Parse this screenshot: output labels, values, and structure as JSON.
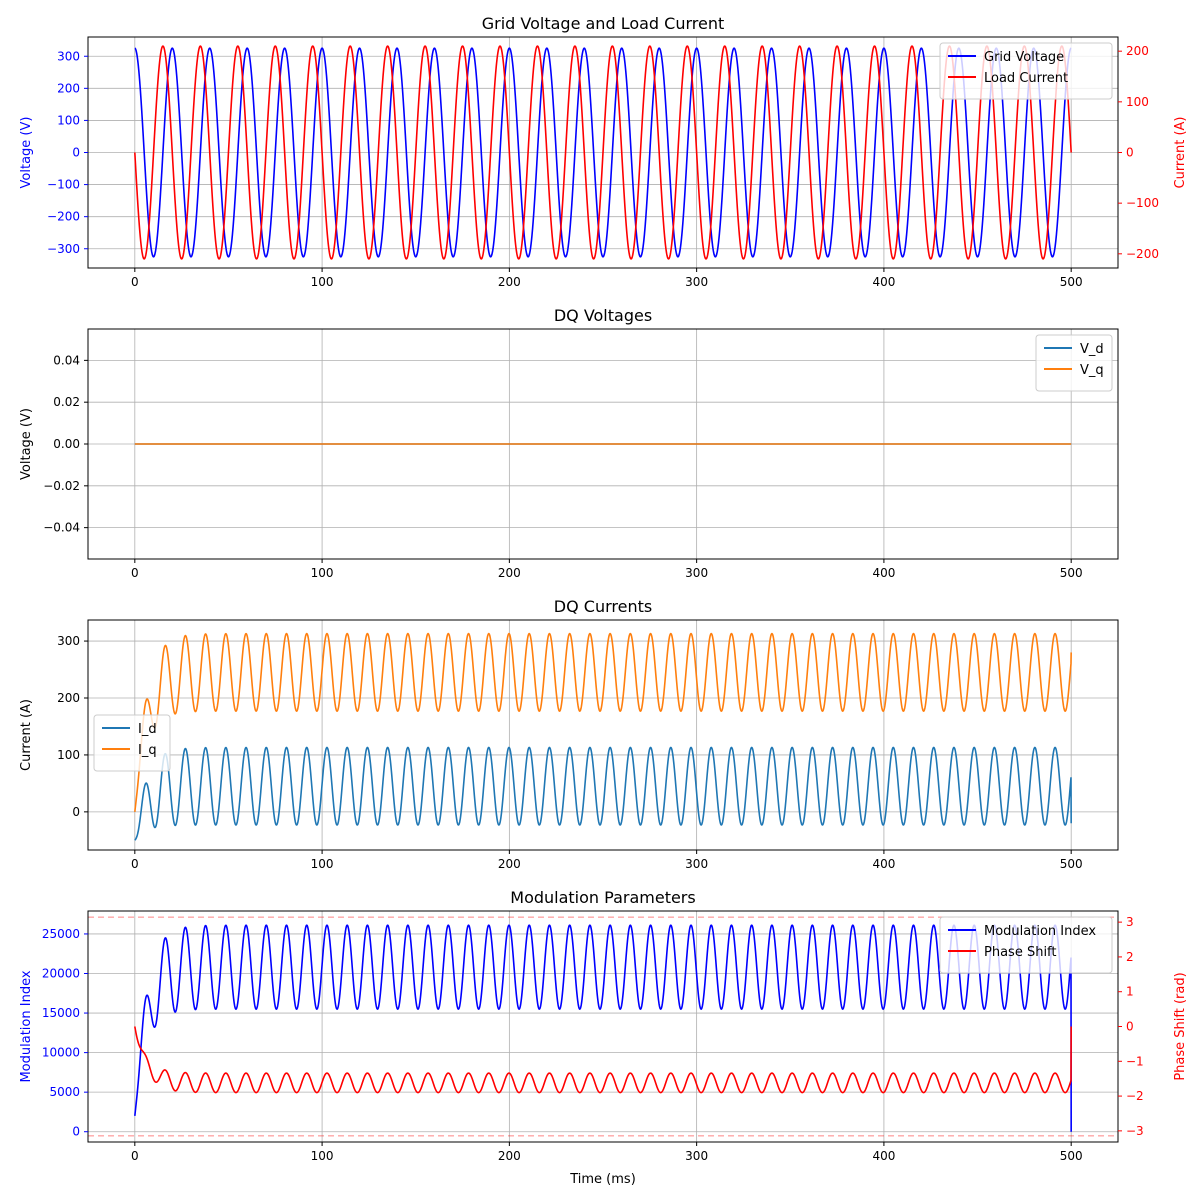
{
  "chart_data": [
    {
      "type": "line",
      "title": "Grid Voltage and Load Current",
      "xlabel": "",
      "ylabel": "Voltage (V)",
      "ylabel_right": "Current (A)",
      "xlim": [
        -25,
        525
      ],
      "ylim": [
        -360,
        360
      ],
      "ylim_right": [
        -228,
        228
      ],
      "xticks": [
        0,
        100,
        200,
        300,
        400,
        500
      ],
      "yticks": [
        -300,
        -200,
        -100,
        0,
        100,
        200,
        300
      ],
      "yticks_right": [
        -200,
        -100,
        0,
        100,
        200
      ],
      "grid": true,
      "legend": "top-right",
      "axis_color_left": "#0000ff",
      "axis_color_right": "#ff0000",
      "series": [
        {
          "name": "Grid Voltage",
          "axis": "left",
          "color": "#0000ff",
          "kind": "sine",
          "amplitude": 325,
          "period_ms": 20,
          "phase_cycles": 0.25,
          "x_range": [
            0,
            500
          ]
        },
        {
          "name": "Load Current",
          "axis": "right",
          "color": "#ff0000",
          "kind": "sine",
          "amplitude": 210,
          "period_ms": 20,
          "phase_cycles": 0.5,
          "x_range": [
            0,
            500
          ]
        }
      ]
    },
    {
      "type": "line",
      "title": "DQ Voltages",
      "xlabel": "",
      "ylabel": "Voltage (V)",
      "xlim": [
        -25,
        525
      ],
      "ylim": [
        -0.055,
        0.055
      ],
      "xticks": [
        0,
        100,
        200,
        300,
        400,
        500
      ],
      "yticks": [
        -0.04,
        -0.02,
        0.0,
        0.02,
        0.04
      ],
      "ytick_labels": [
        "−0.04",
        "−0.02",
        "0.00",
        "0.02",
        "0.04"
      ],
      "grid": true,
      "legend": "top-right",
      "series": [
        {
          "name": "V_d",
          "color": "#1f77b4",
          "kind": "constant",
          "value": 0,
          "x_range": [
            0,
            500
          ]
        },
        {
          "name": "V_q",
          "color": "#ff7f0e",
          "kind": "constant",
          "value": 0,
          "x_range": [
            0,
            500
          ]
        }
      ]
    },
    {
      "type": "line",
      "title": "DQ Currents",
      "xlabel": "",
      "ylabel": "Current (A)",
      "xlim": [
        -25,
        525
      ],
      "ylim": [
        -67,
        337
      ],
      "xticks": [
        0,
        100,
        200,
        300,
        400,
        500
      ],
      "yticks": [
        0,
        100,
        200,
        300
      ],
      "grid": true,
      "legend": "center-left",
      "series": [
        {
          "name": "I_d",
          "color": "#1f77b4",
          "kind": "oscillation",
          "start": -50,
          "mean": 45,
          "amplitude": 68,
          "period_ms": 10.8,
          "end": -20,
          "x_range": [
            0,
            500
          ]
        },
        {
          "name": "I_q",
          "color": "#ff7f0e",
          "kind": "oscillation",
          "start": 0,
          "mean": 245,
          "amplitude": 68,
          "period_ms": 10.8,
          "end": 280,
          "x_range": [
            0,
            500
          ]
        }
      ]
    },
    {
      "type": "line",
      "title": "Modulation Parameters",
      "xlabel": "Time (ms)",
      "ylabel": "Modulation Index",
      "ylabel_right": "Phase Shift (rad)",
      "xlim": [
        -25,
        525
      ],
      "ylim": [
        -1300,
        27900
      ],
      "ylim_right": [
        -3.32,
        3.32
      ],
      "xticks": [
        0,
        100,
        200,
        300,
        400,
        500
      ],
      "yticks": [
        0,
        5000,
        10000,
        15000,
        20000,
        25000
      ],
      "yticks_right": [
        -3,
        -2,
        -1,
        0,
        1,
        2,
        3
      ],
      "ytick_labels_right": [
        "−3",
        "−2",
        "−1",
        "0",
        "1",
        "2",
        "3"
      ],
      "grid": true,
      "legend": "top-right",
      "axis_color_left": "#0000ff",
      "axis_color_right": "#ff0000",
      "reference_lines_right": [
        3.14159,
        -3.14159
      ],
      "series": [
        {
          "name": "Modulation Index",
          "axis": "left",
          "color": "#0000ff",
          "kind": "oscillation",
          "start": 2000,
          "mean": 20800,
          "amplitude": 5300,
          "period_ms": 10.8,
          "end": 0,
          "x_range": [
            0,
            500
          ]
        },
        {
          "name": "Phase Shift",
          "axis": "right",
          "color": "#ff0000",
          "kind": "oscillation",
          "start": 0,
          "mean": -1.62,
          "amplitude": 0.28,
          "period_ms": 10.8,
          "end": 0,
          "x_range": [
            0,
            500
          ]
        }
      ]
    }
  ]
}
